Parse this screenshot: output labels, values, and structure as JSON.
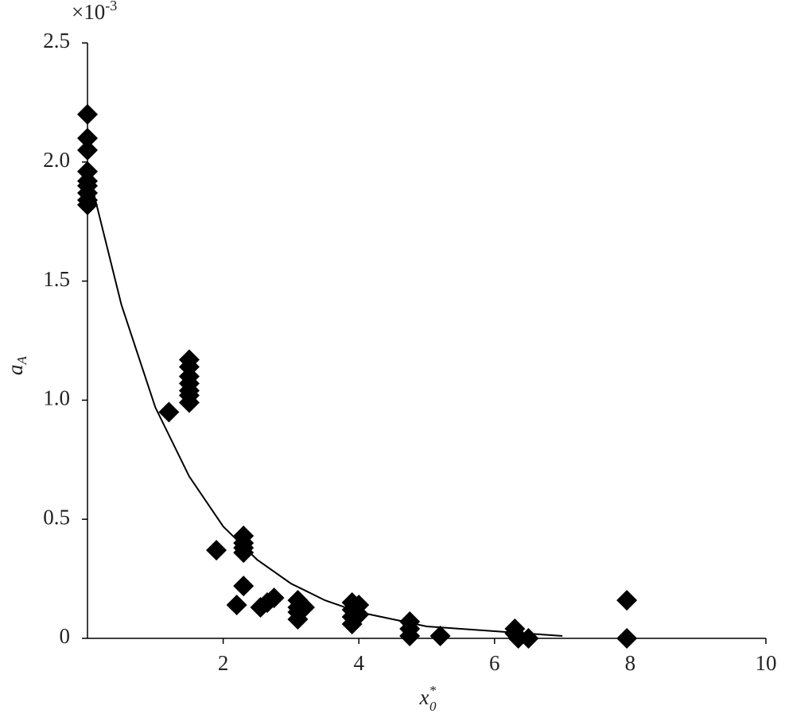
{
  "chart_data": {
    "type": "scatter",
    "y_scale": "×10",
    "y_scale_exp": "-3",
    "ylabel": "a",
    "ylabel_sub": "A",
    "xlabel": "x",
    "xlabel_sub": "0",
    "xlabel_sup": "*",
    "xlim": [
      0,
      10
    ],
    "xticks": [
      2,
      4,
      6,
      8,
      10
    ],
    "ylim": [
      0,
      2.5
    ],
    "yticks": [
      0,
      0.5,
      {
        "value": 1,
        "label": "1.0"
      },
      1.5,
      {
        "value": 2,
        "label": "2.0"
      },
      2.5
    ],
    "series": [
      {
        "type": "scatter",
        "color": "#000000",
        "x": [
          0,
          0,
          0,
          0,
          0,
          0,
          0,
          0,
          0,
          1.2,
          1.5,
          1.5,
          1.5,
          1.5,
          1.5,
          1.5,
          1.5,
          1.9,
          2.2,
          2.3,
          2.3,
          2.3,
          2.3,
          2.3,
          2.55,
          2.65,
          2.75,
          3.1,
          3.1,
          3.1,
          3.1,
          3.2,
          3.9,
          3.9,
          3.9,
          3.9,
          4.0,
          4.0,
          4.75,
          4.75,
          4.75,
          5.2,
          6.3,
          6.3,
          6.35,
          6.5,
          7.95,
          7.95
        ],
        "values": [
          2.2,
          2.1,
          2.05,
          1.96,
          1.92,
          1.9,
          1.87,
          1.84,
          1.82,
          0.95,
          1.17,
          1.14,
          1.1,
          1.07,
          1.04,
          1.02,
          0.99,
          0.37,
          0.14,
          0.43,
          0.4,
          0.38,
          0.36,
          0.22,
          0.13,
          0.15,
          0.17,
          0.16,
          0.13,
          0.11,
          0.08,
          0.13,
          0.15,
          0.12,
          0.09,
          0.06,
          0.14,
          0.1,
          0.07,
          0.04,
          0.01,
          0.01,
          0.04,
          0.02,
          0,
          0,
          0.16,
          0
        ]
      },
      {
        "type": "line",
        "color": "#000000",
        "x": [
          0.1,
          0.5,
          1,
          1.5,
          2,
          2.5,
          3,
          3.5,
          4,
          4.5,
          5,
          5.5,
          6,
          7
        ],
        "values": [
          1.86,
          1.4,
          0.97,
          0.68,
          0.47,
          0.33,
          0.23,
          0.16,
          0.11,
          0.08,
          0.05,
          0.04,
          0.03,
          0.01
        ]
      }
    ]
  }
}
